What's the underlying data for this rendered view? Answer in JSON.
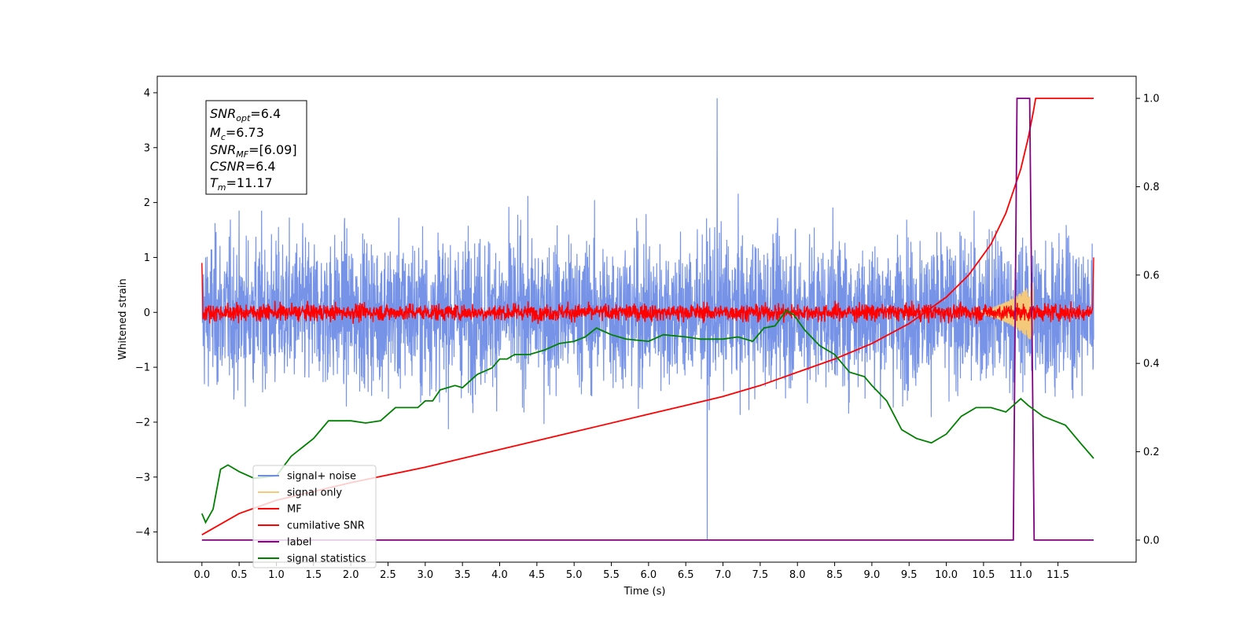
{
  "chart_data": {
    "type": "line",
    "xlabel": "Time (s)",
    "ylabel": "Whitened strain",
    "xlim": [
      -0.6,
      12.55
    ],
    "ylim": [
      -4.55,
      4.3
    ],
    "y2lim": [
      -0.05,
      1.05
    ],
    "xticks": [
      "0.0",
      "0.5",
      "1.0",
      "1.5",
      "2.0",
      "2.5",
      "3.0",
      "3.5",
      "4.0",
      "4.5",
      "5.0",
      "5.5",
      "6.0",
      "6.5",
      "7.0",
      "7.5",
      "8.0",
      "8.5",
      "9.0",
      "9.5",
      "10.0",
      "10.5",
      "11.0",
      "11.5"
    ],
    "yticks": [
      "4",
      "3",
      "2",
      "1",
      "0",
      "−1",
      "−2",
      "−3",
      "−4"
    ],
    "y2ticks": [
      "1.0",
      "0.8",
      "0.6",
      "0.4",
      "0.2",
      "0.0"
    ],
    "annotation": {
      "snr_opt": {
        "base": "SNR",
        "sub": "opt",
        "value": "=6.4"
      },
      "mc": {
        "base": "M",
        "sub": "c",
        "value": "=6.73"
      },
      "snr_mf": {
        "base": "SNR",
        "sub": "MF",
        "value": "=[6.09]"
      },
      "csnr": {
        "base": "CSNR",
        "value": "=6.4"
      },
      "tm": {
        "base": "T",
        "sub": "m",
        "value": "=11.17"
      }
    },
    "legend": {
      "position": "lower-left",
      "entries": [
        {
          "label": "signal+ noise",
          "color": "#6f8de6"
        },
        {
          "label": "signal only",
          "color": "#f5c97a"
        },
        {
          "label": "MF",
          "color": "#ff0000"
        },
        {
          "label": "cumilative SNR",
          "color": "#ff0000"
        },
        {
          "label": "label",
          "color": "#800080"
        },
        {
          "label": "signal statistics",
          "color": "#008000"
        }
      ]
    },
    "series": [
      {
        "name": "signal+ noise",
        "axis": "left",
        "kind": "noise",
        "x_range": [
          0,
          11.98
        ],
        "amplitude_range": [
          -2.5,
          2.6
        ],
        "peak_max": 3.9,
        "peak_min": -4.15
      },
      {
        "name": "signal only",
        "axis": "left",
        "kind": "chirp",
        "x_range": [
          10.2,
          11.17
        ],
        "peak_amplitude": 0.55
      },
      {
        "name": "MF",
        "axis": "left",
        "kind": "noise",
        "x_range": [
          0,
          11.98
        ],
        "amplitude_range": [
          -0.22,
          0.3
        ],
        "end_value": 1.0
      },
      {
        "name": "cumilative SNR",
        "axis": "right",
        "points": [
          [
            0,
            0.012
          ],
          [
            0.5,
            0.06
          ],
          [
            1,
            0.09
          ],
          [
            2,
            0.13
          ],
          [
            3,
            0.165
          ],
          [
            4,
            0.205
          ],
          [
            5,
            0.245
          ],
          [
            6,
            0.285
          ],
          [
            6.5,
            0.305
          ],
          [
            7,
            0.325
          ],
          [
            7.5,
            0.35
          ],
          [
            8,
            0.38
          ],
          [
            8.5,
            0.41
          ],
          [
            9,
            0.445
          ],
          [
            9.5,
            0.49
          ],
          [
            10,
            0.55
          ],
          [
            10.3,
            0.6
          ],
          [
            10.6,
            0.67
          ],
          [
            10.8,
            0.74
          ],
          [
            11,
            0.84
          ],
          [
            11.1,
            0.91
          ],
          [
            11.17,
            0.97
          ],
          [
            11.2,
            1.0
          ],
          [
            11.98,
            1.0
          ]
        ]
      },
      {
        "name": "label",
        "axis": "right",
        "points": [
          [
            0,
            0
          ],
          [
            10.9,
            0
          ],
          [
            10.95,
            1
          ],
          [
            11.12,
            1
          ],
          [
            11.18,
            0
          ],
          [
            11.98,
            0
          ]
        ]
      },
      {
        "name": "signal statistics",
        "axis": "right",
        "points": [
          [
            0,
            0.06
          ],
          [
            0.05,
            0.04
          ],
          [
            0.15,
            0.07
          ],
          [
            0.25,
            0.16
          ],
          [
            0.35,
            0.17
          ],
          [
            0.5,
            0.155
          ],
          [
            0.7,
            0.14
          ],
          [
            1.0,
            0.145
          ],
          [
            1.2,
            0.19
          ],
          [
            1.5,
            0.23
          ],
          [
            1.7,
            0.27
          ],
          [
            2.0,
            0.27
          ],
          [
            2.2,
            0.265
          ],
          [
            2.4,
            0.27
          ],
          [
            2.6,
            0.3
          ],
          [
            2.9,
            0.3
          ],
          [
            3.0,
            0.315
          ],
          [
            3.1,
            0.315
          ],
          [
            3.2,
            0.34
          ],
          [
            3.4,
            0.35
          ],
          [
            3.5,
            0.345
          ],
          [
            3.7,
            0.375
          ],
          [
            3.9,
            0.39
          ],
          [
            4.0,
            0.41
          ],
          [
            4.1,
            0.41
          ],
          [
            4.2,
            0.42
          ],
          [
            4.4,
            0.42
          ],
          [
            4.6,
            0.43
          ],
          [
            4.8,
            0.445
          ],
          [
            5.0,
            0.45
          ],
          [
            5.15,
            0.46
          ],
          [
            5.3,
            0.48
          ],
          [
            5.5,
            0.465
          ],
          [
            5.7,
            0.455
          ],
          [
            6.0,
            0.45
          ],
          [
            6.2,
            0.465
          ],
          [
            6.5,
            0.46
          ],
          [
            6.7,
            0.455
          ],
          [
            7.0,
            0.455
          ],
          [
            7.2,
            0.46
          ],
          [
            7.4,
            0.45
          ],
          [
            7.55,
            0.48
          ],
          [
            7.7,
            0.485
          ],
          [
            7.85,
            0.52
          ],
          [
            7.95,
            0.51
          ],
          [
            8.1,
            0.475
          ],
          [
            8.3,
            0.44
          ],
          [
            8.5,
            0.42
          ],
          [
            8.7,
            0.38
          ],
          [
            8.9,
            0.37
          ],
          [
            9.0,
            0.35
          ],
          [
            9.2,
            0.315
          ],
          [
            9.4,
            0.25
          ],
          [
            9.6,
            0.23
          ],
          [
            9.8,
            0.22
          ],
          [
            10.0,
            0.24
          ],
          [
            10.2,
            0.28
          ],
          [
            10.4,
            0.3
          ],
          [
            10.6,
            0.3
          ],
          [
            10.8,
            0.29
          ],
          [
            11.0,
            0.32
          ],
          [
            11.1,
            0.305
          ],
          [
            11.3,
            0.28
          ],
          [
            11.45,
            0.27
          ],
          [
            11.6,
            0.26
          ],
          [
            11.8,
            0.22
          ],
          [
            11.98,
            0.185
          ]
        ]
      }
    ]
  }
}
